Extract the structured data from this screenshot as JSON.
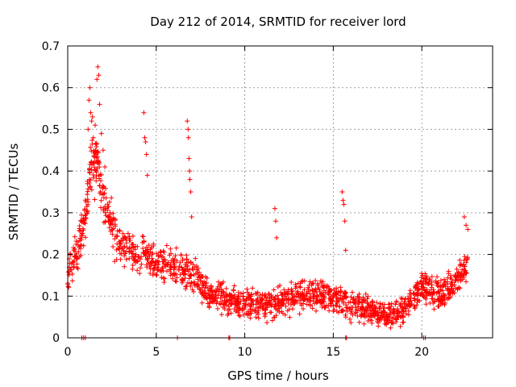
{
  "chart_data": {
    "type": "scatter",
    "title": "Day 212 of 2014, SRMTID for receiver lord",
    "xlabel": "GPS time / hours",
    "ylabel": "SRMTID / TECUs",
    "xlim": [
      0,
      24
    ],
    "ylim": [
      0,
      0.7
    ],
    "x_ticks": [
      0,
      5,
      10,
      15,
      20
    ],
    "x_tick_labels": [
      "0",
      "5",
      "10",
      "15",
      "20"
    ],
    "y_ticks": [
      0,
      0.1,
      0.2,
      0.3,
      0.4,
      0.5,
      0.6,
      0.7
    ],
    "y_tick_labels": [
      "0",
      "0.1",
      "0.2",
      "0.3",
      "0.4",
      "0.5",
      "0.6",
      "0.7"
    ],
    "grid": true,
    "marker": "+",
    "color": "#ff0000",
    "trend": {
      "x": [
        0,
        0.5,
        1,
        1.3,
        1.7,
        2,
        3,
        4,
        5,
        6,
        7,
        8,
        9,
        10,
        11,
        12,
        13,
        14,
        15,
        16,
        17,
        18,
        19,
        20,
        21,
        22,
        22.6
      ],
      "y": [
        0.15,
        0.2,
        0.28,
        0.42,
        0.42,
        0.32,
        0.22,
        0.2,
        0.18,
        0.17,
        0.15,
        0.1,
        0.09,
        0.08,
        0.08,
        0.09,
        0.1,
        0.1,
        0.1,
        0.08,
        0.07,
        0.05,
        0.07,
        0.12,
        0.1,
        0.14,
        0.18
      ]
    },
    "spikes": [
      {
        "x": [
          1.15,
          1.2,
          1.25,
          1.3,
          1.35,
          1.45,
          1.6,
          1.65,
          1.7,
          1.75,
          1.8,
          1.9,
          2.0,
          2.1,
          1.4,
          1.55
        ],
        "y": [
          0.5,
          0.57,
          0.6,
          0.54,
          0.52,
          0.48,
          0.44,
          0.62,
          0.65,
          0.63,
          0.56,
          0.49,
          0.45,
          0.41,
          0.53,
          0.51
        ]
      },
      {
        "x": [
          4.3,
          4.35,
          4.4,
          4.45,
          4.5
        ],
        "y": [
          0.54,
          0.48,
          0.47,
          0.44,
          0.39
        ]
      },
      {
        "x": [
          6.75,
          6.8,
          6.82,
          6.85,
          6.88,
          6.9,
          6.95,
          7.0
        ],
        "y": [
          0.52,
          0.5,
          0.48,
          0.43,
          0.4,
          0.38,
          0.35,
          0.29
        ]
      },
      {
        "x": [
          11.7,
          11.75,
          11.8
        ],
        "y": [
          0.31,
          0.28,
          0.24
        ]
      },
      {
        "x": [
          15.5,
          15.55,
          15.6,
          15.65,
          15.7
        ],
        "y": [
          0.35,
          0.33,
          0.32,
          0.28,
          0.21
        ]
      },
      {
        "x": [
          22.4,
          22.5,
          22.6
        ],
        "y": [
          0.29,
          0.27,
          0.26
        ]
      }
    ],
    "baseline_points": [
      0.8,
      0.9,
      1.0,
      6.2,
      9.1,
      9.15,
      15.7,
      15.75,
      20.1,
      20.2
    ],
    "spread": 0.045,
    "samples_per_hour": 75
  }
}
